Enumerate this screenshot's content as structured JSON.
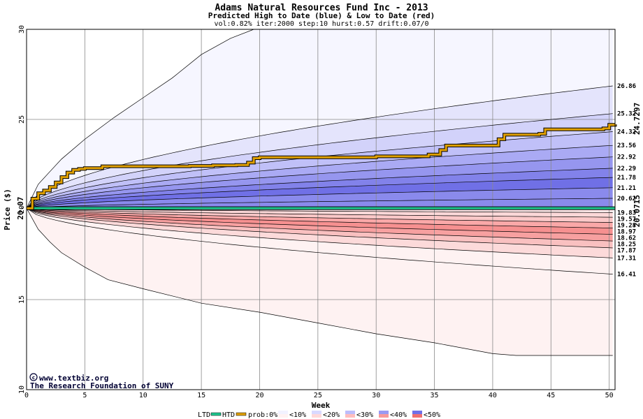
{
  "chart_data": {
    "type": "area",
    "title": "Adams Natural Resources Fund Inc - 2013",
    "subtitle": "Predicted High to Date (blue) &  Low to Date (red)",
    "params": "vol:0.82% iter:2000 step:10 hurst:0.57 drift:0.07/0",
    "xlabel": "Week",
    "ylabel": "Price ($)",
    "xlim": [
      0,
      50.5
    ],
    "ylim": [
      10,
      30
    ],
    "xticks": [
      0,
      5,
      10,
      15,
      20,
      25,
      30,
      35,
      40,
      45,
      50
    ],
    "yticks": [
      10,
      15,
      20,
      25,
      30
    ],
    "grid": true,
    "start_price": 20.07,
    "start_price_label": "20.07",
    "high_end_values": [
      26.86,
      25.32,
      24.32,
      23.56,
      22.92,
      22.29,
      21.78,
      21.21,
      20.62
    ],
    "high_end_labels": [
      "26.86",
      "25.32",
      "24.32",
      "23.56",
      "22.92",
      "22.29",
      "21.78",
      "21.21",
      "20.62"
    ],
    "low_end_values": [
      19.83,
      19.57,
      19.28,
      18.97,
      18.62,
      18.25,
      17.87,
      17.31,
      16.41
    ],
    "low_end_labels": [
      "19.83",
      "19.57",
      "19.28",
      "18.97",
      "18.62",
      "18.25",
      "17.87",
      "17.31",
      "16.41"
    ],
    "high_outer": {
      "x": [
        0,
        1,
        2,
        3,
        5,
        7.5,
        10,
        12.5,
        15,
        17.5,
        19.5
      ],
      "y": [
        20.07,
        21.4,
        22.1,
        22.8,
        23.9,
        25.1,
        26.2,
        27.3,
        28.6,
        29.5,
        30.0
      ]
    },
    "low_outer": {
      "x": [
        0,
        1,
        2,
        3,
        5,
        7,
        10,
        12.5,
        15,
        20,
        25,
        30,
        35,
        40,
        42,
        45,
        50.3
      ],
      "y": [
        20.07,
        18.9,
        18.2,
        17.6,
        16.8,
        16.1,
        15.6,
        15.2,
        14.8,
        14.3,
        13.7,
        13.1,
        12.6,
        12.0,
        11.9,
        11.9,
        11.9
      ]
    },
    "series": [
      {
        "name": "LTD",
        "x": [
          0,
          50.5
        ],
        "y": [
          20.0715,
          20.0715
        ]
      },
      {
        "name": "HTD",
        "x": [
          0,
          0.5,
          1,
          1.5,
          2,
          2.5,
          3,
          3.5,
          4,
          4.5,
          5,
          6.5,
          8,
          10,
          12,
          14,
          16,
          18,
          19,
          19.5,
          20,
          25,
          30,
          34.5,
          35.5,
          36,
          40,
          40.5,
          41,
          44,
          44.5,
          49.5,
          50,
          50.5
        ],
        "y": [
          20.07,
          20.6,
          20.9,
          21.05,
          21.25,
          21.5,
          21.8,
          22.05,
          22.2,
          22.25,
          22.3,
          22.4,
          22.4,
          22.4,
          22.4,
          22.42,
          22.45,
          22.47,
          22.6,
          22.85,
          22.9,
          22.9,
          22.95,
          23.05,
          23.3,
          23.55,
          23.55,
          23.9,
          24.15,
          24.2,
          24.45,
          24.5,
          24.7,
          24.73
        ]
      }
    ],
    "htd_label": "24.7297",
    "ltd_label": "20.0715",
    "credits": [
      "www.textbiz.org",
      "The Research Foundation of SUNY"
    ],
    "legend": {
      "ltd_label": "LTD",
      "htd_label": "HTD",
      "prob_label": "prob:0%",
      "swatches": [
        {
          "label": "<10%",
          "blue": "#f2f2ff",
          "red": "#fff2f2"
        },
        {
          "label": "<20%",
          "blue": "#d9d9ff",
          "red": "#ffd9d9"
        },
        {
          "label": "<30%",
          "blue": "#bdbdfb",
          "red": "#ffbdbd"
        },
        {
          "label": "<40%",
          "blue": "#9a9af2",
          "red": "#f79a9a"
        },
        {
          "label": "<50%",
          "blue": "#7070e8",
          "red": "#f07070"
        }
      ]
    },
    "colors": {
      "htd": "#e0a000",
      "ltd": "#20c890",
      "high_bands": [
        "#f6f6ff",
        "#e4e4fc",
        "#d2d2fa",
        "#c0c0f8",
        "#aaaaf4",
        "#9696ef",
        "#8282ea",
        "#7070e6",
        "#8a8aec"
      ],
      "low_bands": [
        "#fde8e8",
        "#fcd8d8",
        "#fbc8c8",
        "#faa8a8",
        "#f69090",
        "#f7a0a0",
        "#f9c0c0",
        "#fcdada",
        "#fef2f2"
      ]
    }
  }
}
